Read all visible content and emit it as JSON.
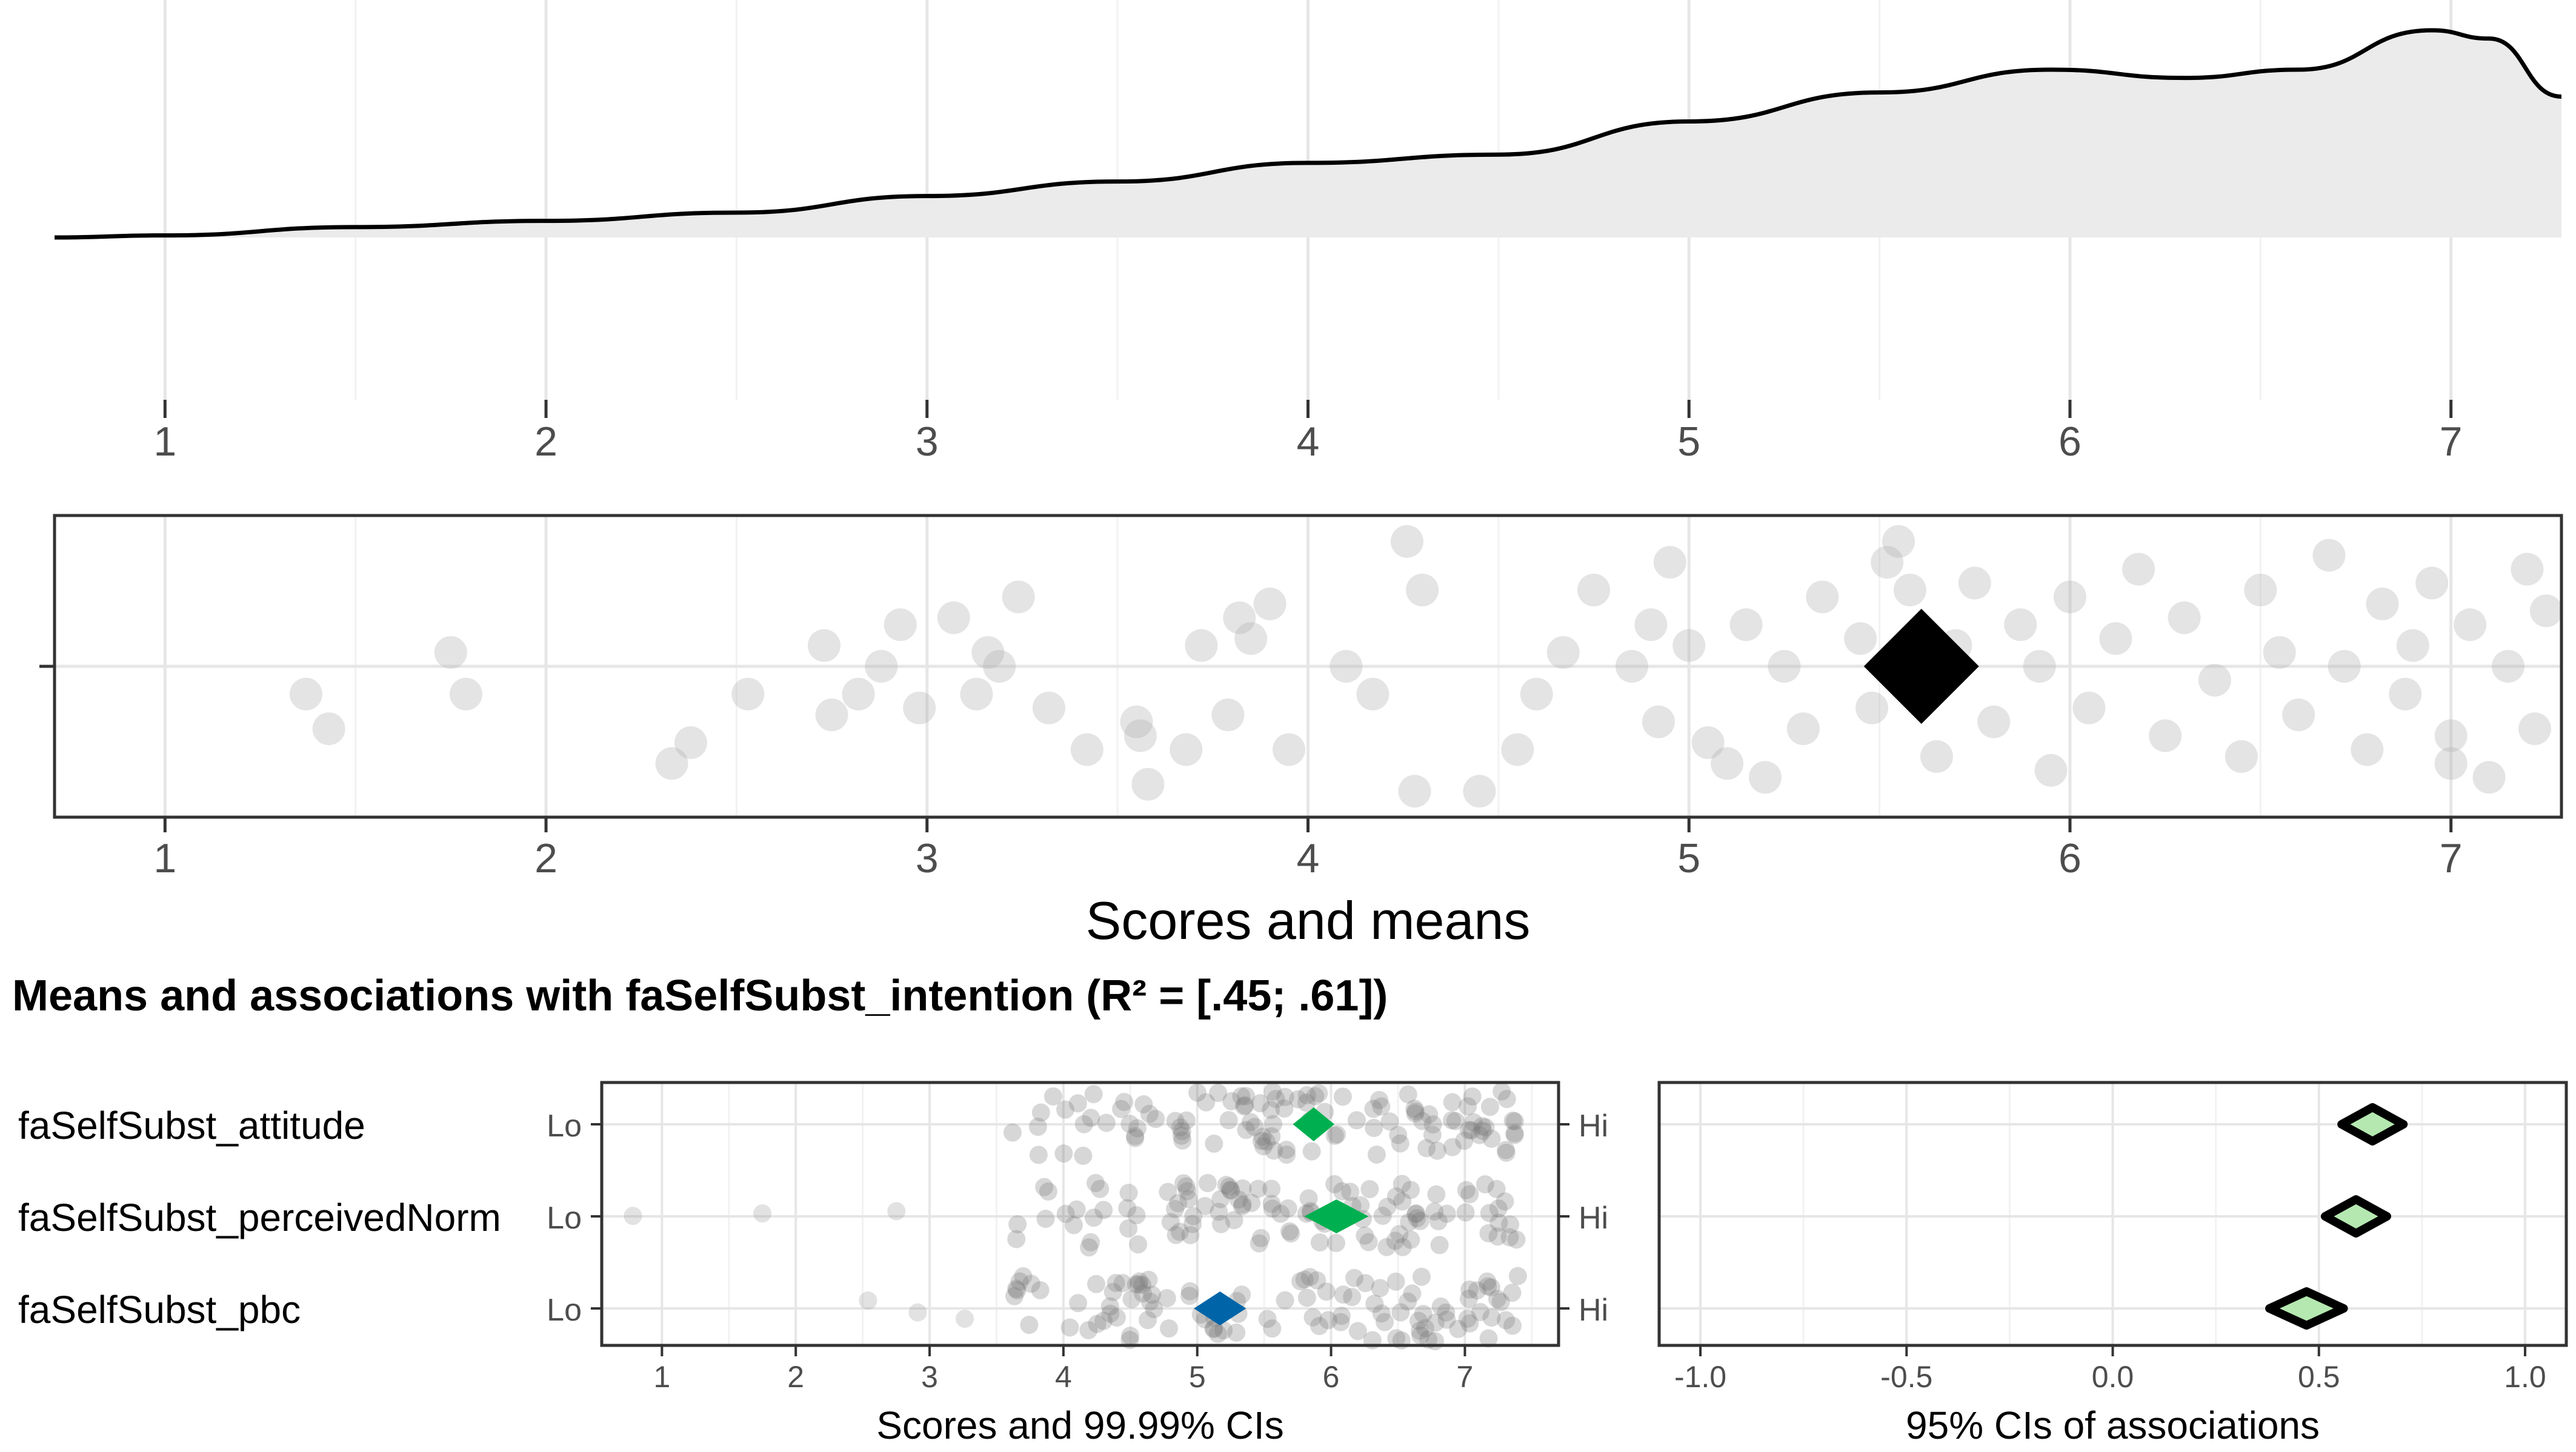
{
  "colors": {
    "density_fill": "#ebebeb",
    "density_line": "#000000",
    "grid_major": "#e6e6e6",
    "grid_minor": "#f2f2f2",
    "points": "#b3b3b3",
    "mean_marker": "#000000",
    "high_mean": "#00b050",
    "mid_mean": "#0065a8",
    "assoc_fill": "#b5e8b0",
    "text": "#4d4d4d",
    "title": "#000000"
  },
  "chart_data": [
    {
      "type": "area",
      "xlim": [
        0.71,
        7.29
      ],
      "grid": true,
      "x": [
        0.71,
        1.0,
        1.5,
        2.0,
        2.5,
        3.0,
        3.5,
        4.0,
        4.5,
        5.0,
        5.5,
        5.95,
        6.3,
        6.6,
        6.95,
        7.1,
        7.29
      ],
      "y": [
        0.0,
        0.01,
        0.05,
        0.08,
        0.12,
        0.2,
        0.27,
        0.36,
        0.4,
        0.56,
        0.7,
        0.81,
        0.77,
        0.81,
        1.0,
        0.96,
        0.68
      ],
      "tick_labels": [
        "1",
        "2",
        "3",
        "4",
        "5",
        "6",
        "7"
      ]
    },
    {
      "type": "scatter",
      "xlim": [
        0.71,
        7.29
      ],
      "xlabel": "Scores and means",
      "tick_labels": [
        "1",
        "2",
        "3",
        "4",
        "5",
        "6",
        "7"
      ],
      "mean": 5.61,
      "points": [
        [
          1.37,
          -0.2
        ],
        [
          1.43,
          -0.45
        ],
        [
          1.75,
          0.1
        ],
        [
          1.79,
          -0.2
        ],
        [
          2.33,
          -0.7
        ],
        [
          2.38,
          -0.55
        ],
        [
          2.53,
          -0.2
        ],
        [
          2.73,
          0.15
        ],
        [
          2.75,
          -0.35
        ],
        [
          2.82,
          -0.2
        ],
        [
          2.88,
          0.0
        ],
        [
          2.93,
          0.3
        ],
        [
          2.98,
          -0.3
        ],
        [
          3.07,
          0.35
        ],
        [
          3.13,
          -0.2
        ],
        [
          3.16,
          0.1
        ],
        [
          3.19,
          0.0
        ],
        [
          3.24,
          0.5
        ],
        [
          3.32,
          -0.3
        ],
        [
          3.42,
          -0.6
        ],
        [
          3.55,
          -0.4
        ],
        [
          3.56,
          -0.5
        ],
        [
          3.58,
          -0.85
        ],
        [
          3.68,
          -0.6
        ],
        [
          3.72,
          0.15
        ],
        [
          3.79,
          -0.35
        ],
        [
          3.82,
          0.35
        ],
        [
          3.85,
          0.2
        ],
        [
          3.9,
          0.45
        ],
        [
          3.95,
          -0.6
        ],
        [
          4.1,
          0.0
        ],
        [
          4.17,
          -0.2
        ],
        [
          4.26,
          0.9
        ],
        [
          4.3,
          0.55
        ],
        [
          4.28,
          -0.9
        ],
        [
          4.45,
          -0.9
        ],
        [
          4.55,
          -0.6
        ],
        [
          4.6,
          -0.2
        ],
        [
          4.67,
          0.1
        ],
        [
          4.75,
          0.55
        ],
        [
          4.85,
          0.0
        ],
        [
          4.9,
          0.3
        ],
        [
          4.92,
          -0.4
        ],
        [
          4.95,
          0.75
        ],
        [
          5.0,
          0.15
        ],
        [
          5.05,
          -0.55
        ],
        [
          5.1,
          -0.7
        ],
        [
          5.15,
          0.3
        ],
        [
          5.25,
          0.0
        ],
        [
          5.3,
          -0.45
        ],
        [
          5.35,
          0.5
        ],
        [
          5.45,
          0.2
        ],
        [
          5.48,
          -0.3
        ],
        [
          5.52,
          0.75
        ],
        [
          5.58,
          0.55
        ],
        [
          5.65,
          -0.65
        ],
        [
          5.7,
          0.15
        ],
        [
          5.75,
          0.6
        ],
        [
          5.8,
          -0.4
        ],
        [
          5.87,
          0.3
        ],
        [
          5.92,
          0.0
        ],
        [
          5.95,
          -0.75
        ],
        [
          6.0,
          0.5
        ],
        [
          6.05,
          -0.3
        ],
        [
          6.12,
          0.2
        ],
        [
          6.18,
          0.7
        ],
        [
          6.25,
          -0.5
        ],
        [
          6.3,
          0.35
        ],
        [
          6.38,
          -0.1
        ],
        [
          6.45,
          -0.65
        ],
        [
          6.5,
          0.55
        ],
        [
          6.55,
          0.1
        ],
        [
          6.6,
          -0.35
        ],
        [
          6.68,
          0.8
        ],
        [
          6.72,
          0.0
        ],
        [
          6.78,
          -0.6
        ],
        [
          6.82,
          0.45
        ],
        [
          6.88,
          -0.2
        ],
        [
          6.95,
          0.6
        ],
        [
          7.0,
          -0.5
        ],
        [
          7.05,
          0.3
        ],
        [
          7.1,
          -0.8
        ],
        [
          7.15,
          0.0
        ],
        [
          7.2,
          0.7
        ],
        [
          7.22,
          -0.45
        ],
        [
          7.25,
          0.4
        ],
        [
          7.0,
          -0.7
        ],
        [
          6.9,
          0.15
        ],
        [
          5.2,
          -0.8
        ],
        [
          5.55,
          0.9
        ]
      ]
    },
    {
      "type": "scatter",
      "title": "Means and associations with faSelfSubst_intention (R² = [.45; .61])",
      "xlabel": "Scores and 99.99% CIs",
      "xlim": [
        0.55,
        7.7
      ],
      "tick_labels": [
        "1",
        "2",
        "3",
        "4",
        "5",
        "6",
        "7"
      ],
      "rows": [
        {
          "name": "faSelfSubst_attitude",
          "low": "Lo",
          "high": "Hi",
          "mean": 5.87,
          "ci": [
            5.72,
            6.03
          ],
          "color": "#00b050",
          "min": 3.6
        },
        {
          "name": "faSelfSubst_perceivedNorm",
          "low": "Lo",
          "high": "Hi",
          "mean": 6.04,
          "ci": [
            5.8,
            6.28
          ],
          "color": "#00b050",
          "min": 0.75
        },
        {
          "name": "faSelfSubst_pbc",
          "low": "Lo",
          "high": "Hi",
          "mean": 5.17,
          "ci": [
            4.98,
            5.37
          ],
          "color": "#0065a8",
          "min": 2.35
        }
      ]
    },
    {
      "type": "scatter",
      "xlabel": "95% CIs of associations",
      "xlim": [
        -1.1,
        1.1
      ],
      "tick_labels": [
        "-1.0",
        "-0.5",
        "0.0",
        "0.5",
        "1.0"
      ],
      "rows": [
        {
          "name": "faSelfSubst_attitude",
          "estimate": 0.63,
          "ci": [
            0.55,
            0.7
          ]
        },
        {
          "name": "faSelfSubst_perceivedNorm",
          "estimate": 0.59,
          "ci": [
            0.51,
            0.66
          ]
        },
        {
          "name": "faSelfSubst_pbc",
          "estimate": 0.47,
          "ci": [
            0.38,
            0.56
          ]
        }
      ]
    }
  ]
}
